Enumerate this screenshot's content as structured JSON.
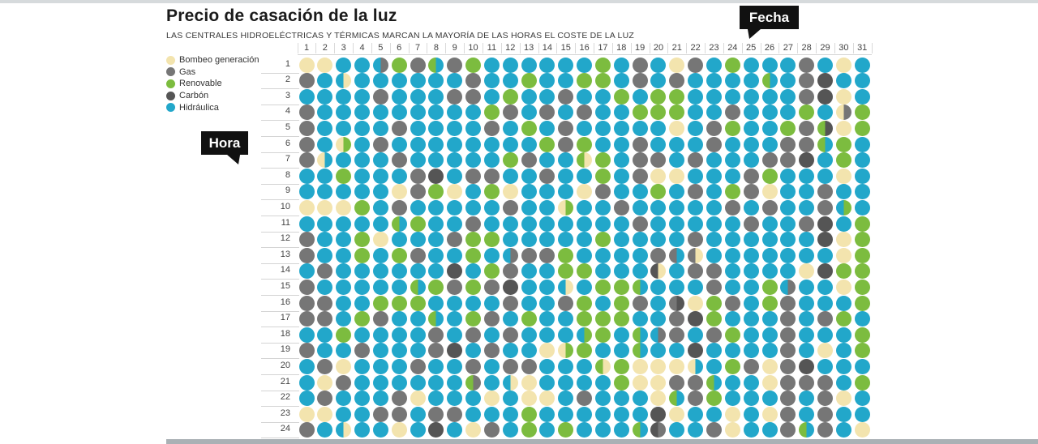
{
  "header": {
    "title": "Precio de casación de la luz",
    "subtitle": "LAS CENTRALES HIDROELÉCTRICAS Y TÉRMICAS MARCAN LA MAYORÍA DE LAS HORAS EL COSTE DE LA LUZ"
  },
  "axis_badges": {
    "x_label": "Fecha",
    "y_label": "Hora"
  },
  "legend": [
    {
      "key": "B",
      "label": "Bombeo generación"
    },
    {
      "key": "G",
      "label": "Gas"
    },
    {
      "key": "R",
      "label": "Renovable"
    },
    {
      "key": "C",
      "label": "Carbón"
    },
    {
      "key": "H",
      "label": "Hidráulica"
    }
  ],
  "colors": {
    "H": "#22a7ca",
    "G": "#767676",
    "R": "#7cbc3f",
    "C": "#555555",
    "B": "#f3e4ae"
  },
  "chart_data": {
    "type": "heatmap",
    "title": "Precio de casación de la luz",
    "subtitle": "LAS CENTRALES HIDROELÉCTRICAS Y TÉRMICAS MARCAN LA MAYORÍA DE LAS HORAS EL COSTE DE LA LUZ",
    "xlabel": "Fecha",
    "ylabel": "Hora",
    "x_categories": [
      "1",
      "2",
      "3",
      "4",
      "5",
      "6",
      "7",
      "8",
      "9",
      "10",
      "11",
      "12",
      "13",
      "14",
      "15",
      "16",
      "17",
      "18",
      "19",
      "20",
      "21",
      "22",
      "23",
      "24",
      "25",
      "26",
      "27",
      "28",
      "29",
      "30",
      "31"
    ],
    "y_categories": [
      "1",
      "2",
      "3",
      "4",
      "5",
      "6",
      "7",
      "8",
      "9",
      "10",
      "11",
      "12",
      "13",
      "14",
      "15",
      "16",
      "17",
      "18",
      "19",
      "20",
      "21",
      "22",
      "23",
      "24"
    ],
    "value_legend": {
      "H": "Hidráulica",
      "G": "Gas",
      "R": "Renovable",
      "C": "Carbón",
      "B": "Bombeo generación"
    },
    "split_cell_format": "left|right",
    "grid": false,
    "legend_position": "top-left",
    "matrix": [
      [
        "B",
        "B",
        "H",
        "H",
        "H|G",
        "R",
        "G",
        "R|H",
        "G",
        "R",
        "H",
        "H",
        "H",
        "H",
        "H",
        "H",
        "R",
        "H",
        "G",
        "H",
        "B",
        "G",
        "H",
        "R",
        "H",
        "H",
        "H",
        "G",
        "H",
        "B",
        "H"
      ],
      [
        "G",
        "H",
        "H|B",
        "H",
        "H",
        "H",
        "H",
        "H",
        "H",
        "G",
        "H",
        "H",
        "R",
        "H",
        "H",
        "R",
        "R",
        "H",
        "G",
        "H",
        "G",
        "H",
        "H",
        "H",
        "H",
        "R|H",
        "H",
        "G",
        "C",
        "H",
        "H"
      ],
      [
        "H",
        "H",
        "H",
        "H",
        "G",
        "H",
        "H",
        "H",
        "G",
        "G",
        "H",
        "R",
        "H",
        "H",
        "G",
        "H",
        "H",
        "R",
        "H",
        "R",
        "R",
        "H",
        "H",
        "H",
        "H",
        "H",
        "H",
        "G",
        "C",
        "B",
        "H"
      ],
      [
        "G",
        "H",
        "H",
        "H",
        "H",
        "H",
        "H",
        "H",
        "H",
        "H",
        "R",
        "G",
        "H",
        "G",
        "H",
        "G",
        "H",
        "H",
        "R",
        "R",
        "R",
        "H",
        "H",
        "G",
        "H",
        "H",
        "H",
        "R",
        "H",
        "B|G",
        "R"
      ],
      [
        "G",
        "H",
        "H",
        "H",
        "H",
        "G",
        "H",
        "H",
        "H",
        "H",
        "G",
        "H",
        "R",
        "H",
        "G",
        "H",
        "H",
        "H",
        "H",
        "H",
        "B",
        "H",
        "G",
        "R",
        "H",
        "H",
        "R",
        "G",
        "R|C",
        "B",
        "R"
      ],
      [
        "G",
        "H",
        "B|R",
        "H",
        "G",
        "H",
        "H",
        "H",
        "H",
        "H",
        "H",
        "H",
        "H",
        "R",
        "G",
        "R",
        "H",
        "H",
        "G",
        "H",
        "H",
        "H",
        "G",
        "H",
        "H",
        "H",
        "G",
        "G",
        "R|H",
        "R",
        "H"
      ],
      [
        "G",
        "B|H",
        "H",
        "H",
        "H",
        "G",
        "H",
        "H",
        "H",
        "H",
        "H",
        "R",
        "G",
        "H",
        "H",
        "R|B",
        "R",
        "H",
        "G",
        "G",
        "H",
        "G",
        "H",
        "H",
        "H",
        "G",
        "G",
        "C",
        "H",
        "R",
        "H"
      ],
      [
        "H",
        "H",
        "R",
        "H",
        "H",
        "H",
        "G",
        "C",
        "H",
        "G",
        "G",
        "H",
        "H",
        "G",
        "H",
        "H",
        "R",
        "H",
        "G",
        "B",
        "B",
        "H",
        "H",
        "H",
        "G",
        "R",
        "H",
        "H",
        "H",
        "B",
        "H"
      ],
      [
        "H",
        "H",
        "H",
        "H",
        "H",
        "B",
        "G",
        "R",
        "B",
        "H",
        "R",
        "B",
        "H",
        "H",
        "H",
        "B",
        "G",
        "H",
        "H",
        "R",
        "H",
        "G",
        "H",
        "R",
        "G",
        "B",
        "H",
        "H",
        "G",
        "H",
        "H"
      ],
      [
        "B",
        "B",
        "B",
        "R",
        "H",
        "G",
        "H",
        "H",
        "H",
        "H",
        "H",
        "G",
        "H",
        "H",
        "B|R",
        "H",
        "H",
        "G",
        "H",
        "H",
        "H",
        "H",
        "H",
        "G",
        "H",
        "G",
        "H",
        "H",
        "G",
        "H|R",
        "H"
      ],
      [
        "H",
        "H",
        "H",
        "H",
        "H",
        "R|H",
        "R",
        "H",
        "H",
        "G",
        "H",
        "H",
        "H",
        "H",
        "H",
        "H",
        "H",
        "H",
        "G",
        "H",
        "H",
        "H",
        "H",
        "H",
        "G",
        "H",
        "H",
        "G",
        "C",
        "H",
        "R"
      ],
      [
        "G",
        "H",
        "H",
        "R",
        "B",
        "H",
        "H",
        "H",
        "G",
        "R",
        "R",
        "H",
        "H",
        "H",
        "H",
        "H",
        "R",
        "H",
        "H",
        "H",
        "H",
        "G",
        "H",
        "H",
        "H",
        "H",
        "H",
        "H",
        "C",
        "B",
        "R"
      ],
      [
        "G",
        "H",
        "H",
        "R",
        "H",
        "R",
        "G",
        "H",
        "H",
        "R",
        "H",
        "H|G",
        "G",
        "G",
        "R",
        "H",
        "H",
        "H",
        "H",
        "G",
        "G|H",
        "G|B",
        "H",
        "H",
        "H",
        "H",
        "H",
        "H",
        "H",
        "B",
        "R"
      ],
      [
        "H",
        "G",
        "H",
        "H",
        "H",
        "H",
        "H",
        "H",
        "C",
        "H",
        "R",
        "G",
        "H",
        "H",
        "R",
        "R",
        "H",
        "H",
        "H",
        "C|B",
        "H",
        "G",
        "G",
        "H",
        "H",
        "H",
        "H",
        "B",
        "C",
        "R",
        "R"
      ],
      [
        "G",
        "H",
        "H",
        "H",
        "H",
        "H",
        "R|H",
        "R",
        "G",
        "R",
        "G",
        "C",
        "H",
        "H",
        "H|B",
        "H",
        "R",
        "R",
        "R|H",
        "H",
        "H",
        "H",
        "G",
        "H",
        "H",
        "R",
        "H|G",
        "H",
        "H",
        "B",
        "R"
      ],
      [
        "G",
        "G",
        "H",
        "H",
        "R",
        "R",
        "R",
        "H",
        "H",
        "H",
        "H",
        "G",
        "H",
        "H",
        "G",
        "R",
        "H",
        "R",
        "G",
        "H",
        "G|C",
        "B",
        "R",
        "G",
        "H",
        "R",
        "G",
        "H",
        "H",
        "H",
        "R"
      ],
      [
        "G",
        "G",
        "H",
        "R",
        "G",
        "H",
        "H",
        "R|H",
        "H",
        "R",
        "G",
        "H",
        "R",
        "H",
        "H",
        "R",
        "R",
        "R",
        "H",
        "H",
        "G",
        "C",
        "R",
        "H",
        "H",
        "H",
        "G",
        "H",
        "G",
        "R",
        "H"
      ],
      [
        "H",
        "H",
        "R",
        "H",
        "H",
        "H",
        "H",
        "G",
        "H",
        "G",
        "H",
        "G",
        "H",
        "H",
        "H",
        "H|R",
        "R",
        "H",
        "R|H",
        "H|G",
        "G",
        "H",
        "G",
        "R",
        "H",
        "H",
        "G",
        "H",
        "H",
        "H",
        "R"
      ],
      [
        "G",
        "H",
        "H",
        "G",
        "H",
        "H",
        "H",
        "G",
        "C",
        "H",
        "G",
        "H",
        "H",
        "B",
        "B|R",
        "R",
        "H",
        "H",
        "R|H",
        "H",
        "H",
        "C",
        "H",
        "H",
        "H",
        "H",
        "G",
        "H",
        "B",
        "H",
        "R"
      ],
      [
        "H",
        "G",
        "B",
        "H",
        "H",
        "H",
        "G",
        "H",
        "H",
        "G",
        "H",
        "G",
        "G",
        "H",
        "H",
        "H",
        "R|B",
        "R",
        "B",
        "B",
        "B",
        "B|H",
        "H",
        "R",
        "G",
        "B",
        "G",
        "C",
        "H",
        "H",
        "H"
      ],
      [
        "H",
        "B",
        "G",
        "H",
        "H",
        "H",
        "H",
        "H",
        "H",
        "R|G",
        "H",
        "H|B",
        "B",
        "H",
        "H",
        "H",
        "H",
        "R",
        "B",
        "B",
        "G",
        "G",
        "R|H",
        "H",
        "H",
        "B",
        "G",
        "G",
        "G",
        "H",
        "R"
      ],
      [
        "H",
        "G",
        "H",
        "H",
        "H",
        "G",
        "B",
        "H",
        "H",
        "H",
        "B",
        "H",
        "B",
        "B",
        "H",
        "G",
        "H",
        "H",
        "H",
        "B",
        "R|H",
        "G",
        "R",
        "H",
        "H",
        "H",
        "G",
        "H",
        "G",
        "B",
        "H"
      ],
      [
        "B",
        "B",
        "H",
        "H",
        "G",
        "G",
        "H",
        "G",
        "G",
        "H",
        "H",
        "H",
        "R",
        "H",
        "H",
        "H",
        "H",
        "H",
        "H",
        "C",
        "B",
        "H",
        "H",
        "B",
        "H",
        "B",
        "G",
        "H",
        "G",
        "H",
        "H"
      ],
      [
        "G",
        "H",
        "H|B",
        "H",
        "H",
        "B",
        "H",
        "C",
        "H",
        "B",
        "G",
        "H",
        "R",
        "H",
        "R",
        "H",
        "H",
        "H",
        "R|H",
        "C|G",
        "H",
        "H",
        "G",
        "B",
        "H",
        "H",
        "G",
        "R|H",
        "G",
        "H",
        "B"
      ]
    ]
  }
}
